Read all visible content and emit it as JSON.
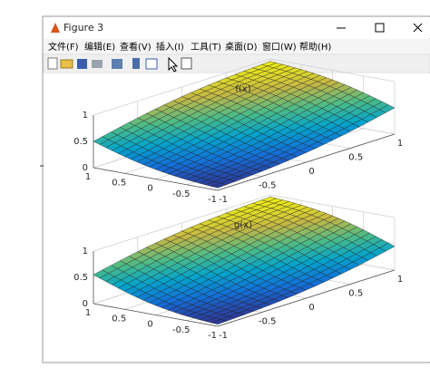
{
  "window": {
    "title": "Figure 3",
    "menu": [
      "文件(F)",
      "编辑(E)",
      "查看(V)",
      "插入(I)",
      "工具(T)",
      "桌面(D)",
      "窗口(W)",
      "帮助(H)"
    ]
  },
  "plots": [
    {
      "title": "f(x)",
      "zticks": [
        0,
        0.5,
        1
      ],
      "xticks": [
        1,
        0.5,
        0,
        -0.5,
        -1
      ],
      "yticks": [
        -1,
        -0.5,
        0,
        0.5,
        1
      ]
    },
    {
      "title": "g(x)",
      "zticks": [
        0,
        0.5,
        1
      ],
      "xticks": [
        1,
        0.5,
        0,
        -0.5,
        -1
      ],
      "yticks": [
        -1,
        -0.5,
        0,
        0.5,
        1
      ]
    }
  ]
}
